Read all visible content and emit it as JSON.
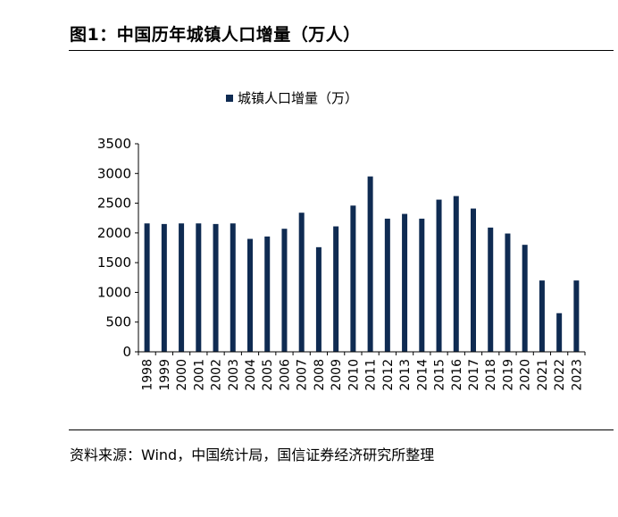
{
  "figure": {
    "title": "图1：中国历年城镇人口增量（万人）",
    "source": "资料来源：Wind，中国统计局，国信证券经济研究所整理"
  },
  "chart_data": {
    "type": "bar",
    "legend": {
      "label": "城镇人口增量（万）",
      "placement": "top-center"
    },
    "categories": [
      "1998",
      "1999",
      "2000",
      "2001",
      "2002",
      "2003",
      "2004",
      "2005",
      "2006",
      "2007",
      "2008",
      "2009",
      "2010",
      "2011",
      "2012",
      "2013",
      "2014",
      "2015",
      "2016",
      "2017",
      "2018",
      "2019",
      "2020",
      "2021",
      "2022",
      "2023"
    ],
    "series": [
      {
        "name": "城镇人口增量（万）",
        "values": [
          2160,
          2150,
          2160,
          2160,
          2150,
          2160,
          1900,
          1940,
          2070,
          2340,
          1760,
          2110,
          2460,
          2950,
          2240,
          2320,
          2240,
          2560,
          2620,
          2410,
          2090,
          1990,
          1800,
          1200,
          650,
          1200
        ]
      }
    ],
    "ylim": [
      0,
      3500
    ],
    "yticks": [
      "0",
      "500",
      "1000",
      "1500",
      "2000",
      "2500",
      "3000",
      "3500"
    ],
    "grid": false,
    "colors": {
      "bar": "#0f2b52",
      "axis": "#000000"
    }
  }
}
